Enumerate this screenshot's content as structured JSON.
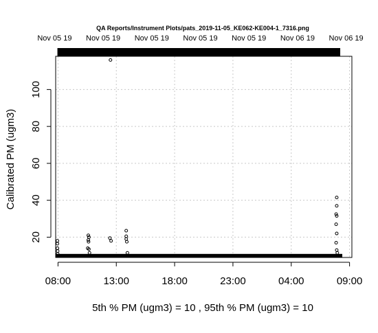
{
  "chart_data": {
    "type": "scatter",
    "title": "QA Reports/Instrument Plots/pats_2019-11-05_KE062-KE004-1_7316.png",
    "top_axis_labels": [
      "Nov 05 19",
      "Nov 05 19",
      "Nov 05 19",
      "Nov 05 19",
      "Nov 05 19",
      "Nov 06 19",
      "Nov 06 19"
    ],
    "xlabel": "",
    "ylabel": "Calibrated PM (ugm3)",
    "x_tick_labels": [
      "08:00",
      "13:00",
      "18:00",
      "23:00",
      "04:00",
      "09:00"
    ],
    "x_tick_hours": [
      8,
      13,
      18,
      23,
      28,
      33
    ],
    "xlim_hours": [
      7.8,
      33.2
    ],
    "y_ticks": [
      20,
      40,
      60,
      80,
      100
    ],
    "ylim": [
      9,
      118
    ],
    "grid": true,
    "baseline": {
      "x_start_hours": 7.95,
      "x_end_hours": 32.2,
      "y": 10
    },
    "active_period": {
      "x_start_hours": 7.95,
      "x_end_hours": 32.2
    },
    "points": [
      {
        "x": 7.95,
        "y": 18
      },
      {
        "x": 7.95,
        "y": 16.5
      },
      {
        "x": 7.95,
        "y": 14
      },
      {
        "x": 7.97,
        "y": 12.5
      },
      {
        "x": 7.97,
        "y": 11
      },
      {
        "x": 10.6,
        "y": 21
      },
      {
        "x": 10.65,
        "y": 20
      },
      {
        "x": 10.6,
        "y": 18.5
      },
      {
        "x": 10.62,
        "y": 17.5
      },
      {
        "x": 10.55,
        "y": 14
      },
      {
        "x": 10.65,
        "y": 13.5
      },
      {
        "x": 10.7,
        "y": 11.5
      },
      {
        "x": 12.45,
        "y": 19.5
      },
      {
        "x": 12.55,
        "y": 18
      },
      {
        "x": 12.5,
        "y": 116
      },
      {
        "x": 13.85,
        "y": 23.5
      },
      {
        "x": 13.85,
        "y": 20.5
      },
      {
        "x": 13.85,
        "y": 19
      },
      {
        "x": 13.9,
        "y": 17.5
      },
      {
        "x": 13.95,
        "y": 11.5
      },
      {
        "x": 31.9,
        "y": 41.5
      },
      {
        "x": 31.9,
        "y": 37
      },
      {
        "x": 31.85,
        "y": 32.5
      },
      {
        "x": 31.9,
        "y": 31.5
      },
      {
        "x": 31.85,
        "y": 27
      },
      {
        "x": 31.9,
        "y": 22
      },
      {
        "x": 31.85,
        "y": 17
      },
      {
        "x": 31.9,
        "y": 13
      },
      {
        "x": 31.95,
        "y": 11.5
      }
    ]
  },
  "footer": {
    "text": "5th % PM (ugm3) =  10 , 95th % PM (ugm3)  =  10"
  }
}
